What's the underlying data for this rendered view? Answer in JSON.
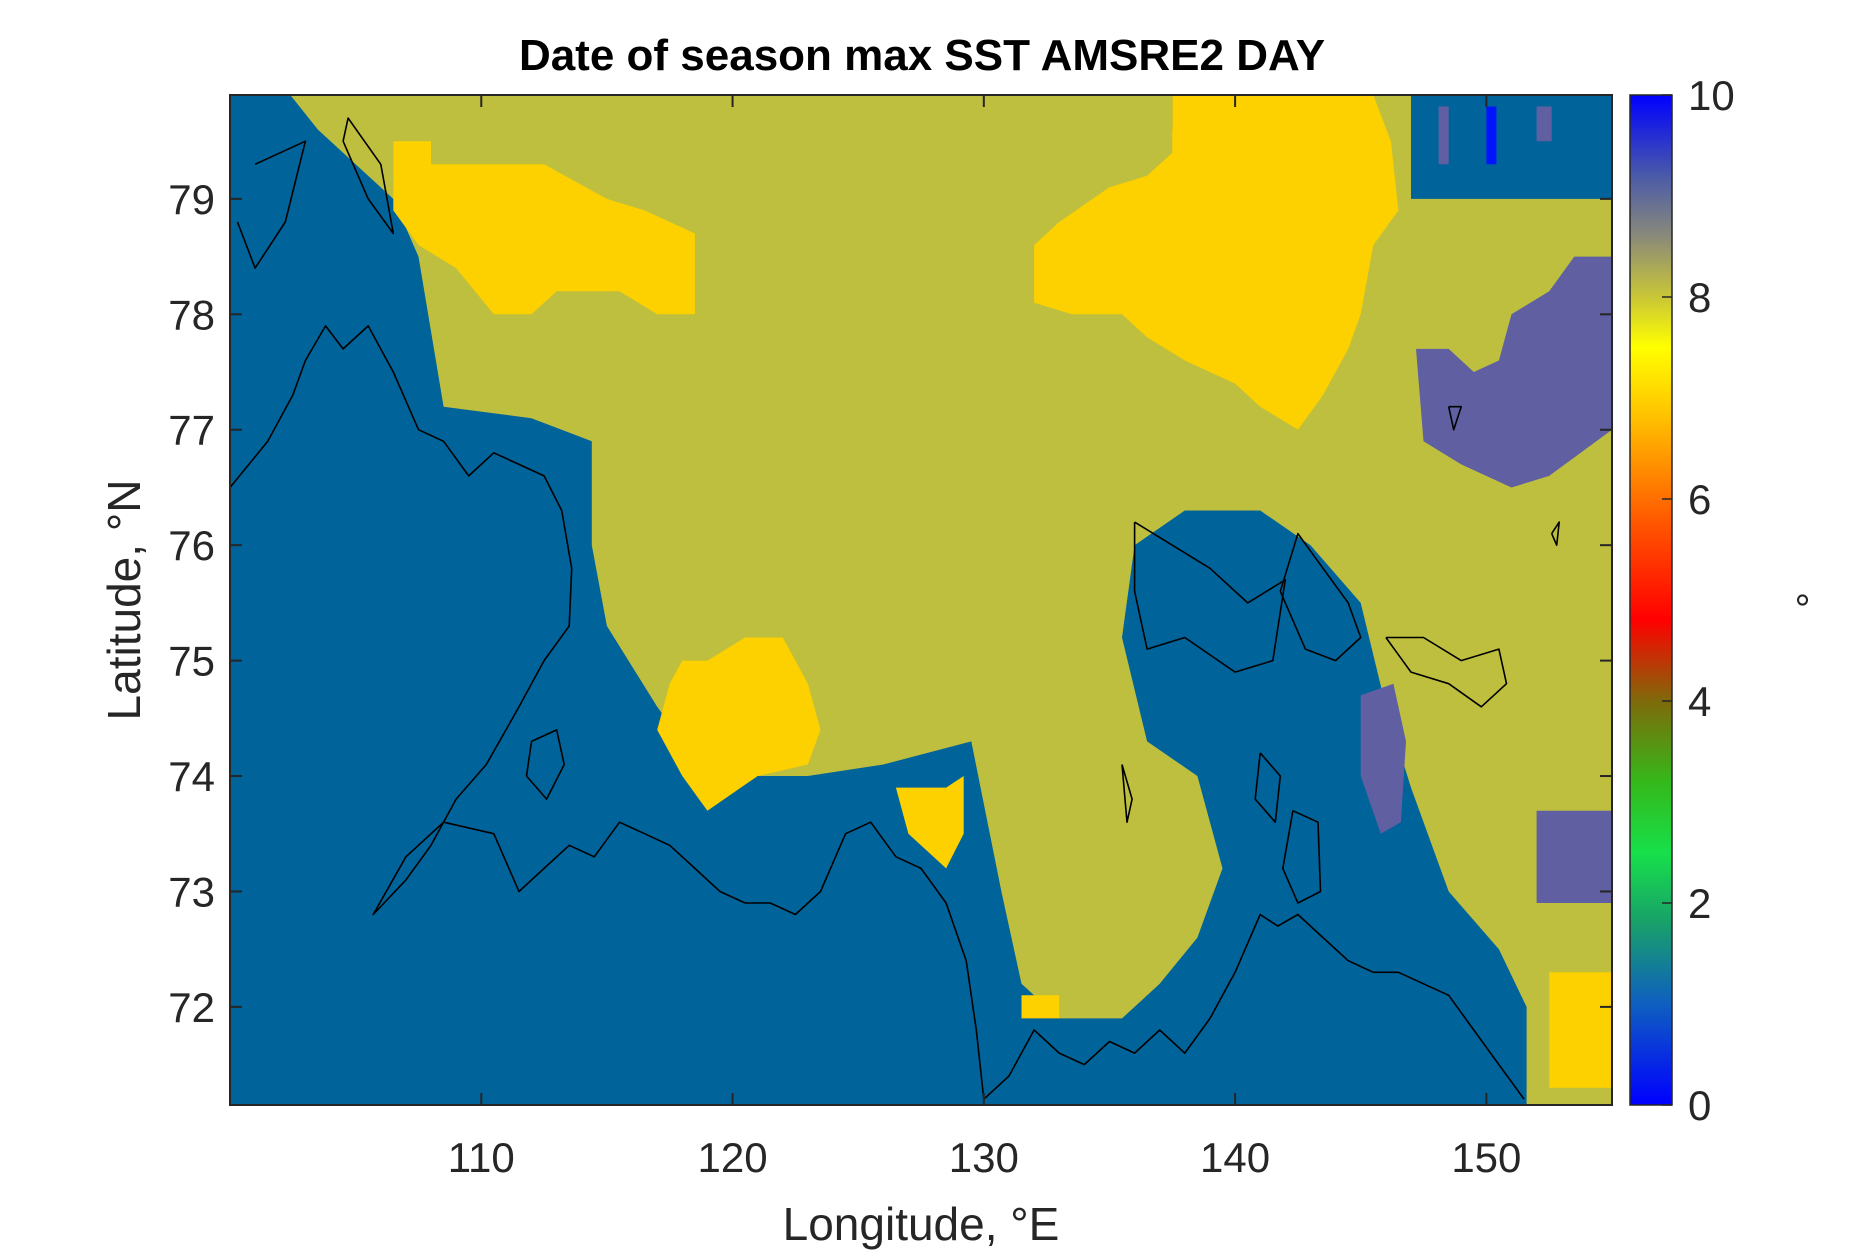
{
  "chart_data": {
    "type": "heatmap",
    "title": "Date of season max SST AMSRE2 DAY",
    "xlabel": "Longitude, °E",
    "ylabel": "Latitude, °N",
    "colorbar_label": "°",
    "xlim": [
      100,
      155
    ],
    "ylim": [
      71.15,
      79.9
    ],
    "clim": [
      0,
      10
    ],
    "x_ticks": [
      110,
      120,
      130,
      140,
      150
    ],
    "x_tick_labels": [
      "110",
      "120",
      "130",
      "140",
      "150"
    ],
    "y_ticks": [
      72,
      73,
      74,
      75,
      76,
      77,
      78,
      79
    ],
    "y_tick_labels": [
      "72",
      "73",
      "74",
      "75",
      "76",
      "77",
      "78",
      "79"
    ],
    "colorbar_ticks": [
      0,
      2,
      4,
      6,
      8,
      10
    ],
    "colorbar_tick_labels": [
      "0",
      "2",
      "4",
      "6",
      "8",
      "10"
    ],
    "colors": {
      "land": "#00639a",
      "value_8": "#bebf3f",
      "value_7": "#fdd000",
      "value_9": "#5f5fa2",
      "value_10": "#0014ff",
      "coastline": "#000000"
    },
    "field_regions": [
      {
        "value": 8,
        "polygon": [
          [
            102.4,
            79.9
          ],
          [
            137.5,
            79.9
          ],
          [
            137.5,
            79.6
          ],
          [
            143.2,
            79.6
          ],
          [
            143.2,
            79.9
          ],
          [
            147.0,
            79.9
          ],
          [
            147.0,
            79.0
          ],
          [
            155,
            79.0
          ],
          [
            155,
            71.15
          ],
          [
            151.6,
            71.15
          ],
          [
            151.6,
            72.0
          ],
          [
            150.5,
            72.5
          ],
          [
            148.5,
            73.0
          ],
          [
            147.0,
            73.9
          ],
          [
            146.0,
            74.6
          ],
          [
            145.0,
            75.5
          ],
          [
            143.0,
            76.0
          ],
          [
            141.0,
            76.3
          ],
          [
            138.0,
            76.3
          ],
          [
            136.0,
            76.0
          ],
          [
            135.5,
            75.2
          ],
          [
            136.5,
            74.3
          ],
          [
            138.5,
            74.0
          ],
          [
            139.5,
            73.2
          ],
          [
            138.5,
            72.6
          ],
          [
            137.0,
            72.2
          ],
          [
            135.5,
            71.9
          ],
          [
            133.0,
            71.9
          ],
          [
            131.5,
            72.2
          ],
          [
            130.7,
            73.0
          ],
          [
            129.5,
            74.3
          ],
          [
            126.0,
            74.1
          ],
          [
            123.0,
            74.0
          ],
          [
            119.0,
            74.0
          ],
          [
            117.0,
            74.6
          ],
          [
            115.0,
            75.3
          ],
          [
            114.4,
            76.0
          ],
          [
            114.4,
            76.9
          ],
          [
            112.0,
            77.1
          ],
          [
            108.5,
            77.2
          ],
          [
            107.5,
            78.5
          ],
          [
            106.5,
            79.0
          ],
          [
            105.0,
            79.3
          ],
          [
            103.5,
            79.6
          ]
        ]
      },
      {
        "value": 7,
        "polygon": [
          [
            106.5,
            79.5
          ],
          [
            108.0,
            79.5
          ],
          [
            108.0,
            79.3
          ],
          [
            112.5,
            79.3
          ],
          [
            115.0,
            79.0
          ],
          [
            116.5,
            78.9
          ],
          [
            118.5,
            78.7
          ],
          [
            118.5,
            78.0
          ],
          [
            117.0,
            78.0
          ],
          [
            115.5,
            78.2
          ],
          [
            113.0,
            78.2
          ],
          [
            112.0,
            78.0
          ],
          [
            110.5,
            78.0
          ],
          [
            109.0,
            78.4
          ],
          [
            107.5,
            78.6
          ],
          [
            106.5,
            78.9
          ]
        ]
      },
      {
        "value": 7,
        "polygon": [
          [
            137.5,
            79.9
          ],
          [
            143.2,
            79.9
          ],
          [
            145.5,
            79.9
          ],
          [
            146.2,
            79.5
          ],
          [
            146.5,
            78.9
          ],
          [
            145.5,
            78.6
          ],
          [
            145.0,
            78.0
          ],
          [
            144.5,
            77.7
          ],
          [
            143.5,
            77.3
          ],
          [
            142.5,
            77.0
          ],
          [
            141.0,
            77.2
          ],
          [
            140.0,
            77.4
          ],
          [
            138.0,
            77.6
          ],
          [
            136.5,
            77.8
          ],
          [
            135.5,
            78.0
          ],
          [
            133.5,
            78.0
          ],
          [
            132.0,
            78.1
          ],
          [
            132.0,
            78.6
          ],
          [
            133.0,
            78.8
          ],
          [
            135.0,
            79.1
          ],
          [
            136.5,
            79.2
          ],
          [
            137.5,
            79.4
          ]
        ]
      },
      {
        "value": 7,
        "polygon": [
          [
            117.0,
            74.4
          ],
          [
            117.5,
            74.8
          ],
          [
            118.0,
            75.0
          ],
          [
            119.0,
            75.0
          ],
          [
            120.5,
            75.2
          ],
          [
            122.0,
            75.2
          ],
          [
            123.0,
            74.8
          ],
          [
            123.5,
            74.4
          ],
          [
            123.0,
            74.1
          ],
          [
            121.0,
            74.0
          ],
          [
            119.0,
            73.7
          ],
          [
            118.0,
            74.0
          ]
        ]
      },
      {
        "value": 7,
        "polygon": [
          [
            126.5,
            73.9
          ],
          [
            128.5,
            73.9
          ],
          [
            129.2,
            74.0
          ],
          [
            129.2,
            73.5
          ],
          [
            128.5,
            73.2
          ],
          [
            127.0,
            73.5
          ]
        ]
      },
      {
        "value": 7,
        "polygon": [
          [
            131.5,
            72.1
          ],
          [
            133.0,
            72.1
          ],
          [
            133.0,
            71.9
          ],
          [
            131.5,
            71.9
          ]
        ]
      },
      {
        "value": 7,
        "polygon": [
          [
            152.5,
            72.3
          ],
          [
            155,
            72.3
          ],
          [
            155,
            71.3
          ],
          [
            152.5,
            71.3
          ]
        ]
      },
      {
        "value": 9,
        "polygon": [
          [
            147.2,
            77.7
          ],
          [
            148.5,
            77.7
          ],
          [
            149.5,
            77.5
          ],
          [
            150.5,
            77.6
          ],
          [
            151.0,
            78.0
          ],
          [
            152.5,
            78.2
          ],
          [
            153.5,
            78.5
          ],
          [
            155,
            78.5
          ],
          [
            155,
            77.0
          ],
          [
            152.5,
            76.6
          ],
          [
            151.0,
            76.5
          ],
          [
            149.0,
            76.7
          ],
          [
            147.5,
            76.9
          ]
        ]
      },
      {
        "value": 9,
        "polygon": [
          [
            145.0,
            74.0
          ],
          [
            145.0,
            74.7
          ],
          [
            146.3,
            74.8
          ],
          [
            146.8,
            74.3
          ],
          [
            146.6,
            73.6
          ],
          [
            145.8,
            73.5
          ]
        ]
      },
      {
        "value": 9,
        "polygon": [
          [
            152.0,
            73.7
          ],
          [
            155,
            73.7
          ],
          [
            155,
            72.9
          ],
          [
            152.0,
            72.9
          ]
        ]
      },
      {
        "value": 9,
        "polygon": [
          [
            148.1,
            79.3
          ],
          [
            148.5,
            79.3
          ],
          [
            148.5,
            79.8
          ],
          [
            148.1,
            79.8
          ]
        ]
      },
      {
        "value": 9,
        "polygon": [
          [
            152.0,
            79.5
          ],
          [
            152.6,
            79.5
          ],
          [
            152.6,
            79.8
          ],
          [
            152.0,
            79.8
          ]
        ]
      },
      {
        "value": 10,
        "polygon": [
          [
            150.0,
            79.3
          ],
          [
            150.4,
            79.3
          ],
          [
            150.4,
            79.8
          ],
          [
            150.0,
            79.8
          ]
        ]
      }
    ],
    "coastlines": [
      [
        [
          100.0,
          76.5
        ],
        [
          101.5,
          76.9
        ],
        [
          102.5,
          77.3
        ],
        [
          103.0,
          77.6
        ],
        [
          103.8,
          77.9
        ],
        [
          104.5,
          77.7
        ],
        [
          105.5,
          77.9
        ],
        [
          106.5,
          77.5
        ],
        [
          107.5,
          77.0
        ],
        [
          108.5,
          76.9
        ],
        [
          109.5,
          76.6
        ],
        [
          110.5,
          76.8
        ],
        [
          111.5,
          76.7
        ],
        [
          112.5,
          76.6
        ],
        [
          113.2,
          76.3
        ],
        [
          113.6,
          75.8
        ],
        [
          113.5,
          75.3
        ],
        [
          112.5,
          75.0
        ],
        [
          111.5,
          74.6
        ],
        [
          110.2,
          74.1
        ],
        [
          109.0,
          73.8
        ],
        [
          108.0,
          73.4
        ],
        [
          107.0,
          73.1
        ],
        [
          105.7,
          72.8
        ],
        [
          107.0,
          73.3
        ],
        [
          108.5,
          73.6
        ],
        [
          110.5,
          73.5
        ],
        [
          111.5,
          73.0
        ],
        [
          112.5,
          73.2
        ],
        [
          113.5,
          73.4
        ],
        [
          114.5,
          73.3
        ],
        [
          115.5,
          73.6
        ],
        [
          116.5,
          73.5
        ],
        [
          117.5,
          73.4
        ],
        [
          118.5,
          73.2
        ],
        [
          119.5,
          73.0
        ],
        [
          120.5,
          72.9
        ],
        [
          121.5,
          72.9
        ],
        [
          122.5,
          72.8
        ],
        [
          123.5,
          73.0
        ],
        [
          124.5,
          73.5
        ],
        [
          125.5,
          73.6
        ],
        [
          126.5,
          73.3
        ],
        [
          127.5,
          73.2
        ],
        [
          128.5,
          72.9
        ],
        [
          129.3,
          72.4
        ],
        [
          129.7,
          71.8
        ],
        [
          130.0,
          71.2
        ],
        [
          131.0,
          71.4
        ],
        [
          132.0,
          71.8
        ],
        [
          133.0,
          71.6
        ],
        [
          134.0,
          71.5
        ],
        [
          135.0,
          71.7
        ],
        [
          136.0,
          71.6
        ],
        [
          137.0,
          71.8
        ],
        [
          138.0,
          71.6
        ],
        [
          139.0,
          71.9
        ],
        [
          140.0,
          72.3
        ],
        [
          141.0,
          72.8
        ],
        [
          141.7,
          72.7
        ],
        [
          142.5,
          72.8
        ],
        [
          143.5,
          72.6
        ],
        [
          144.5,
          72.4
        ],
        [
          145.5,
          72.3
        ],
        [
          146.5,
          72.3
        ],
        [
          147.5,
          72.2
        ],
        [
          148.5,
          72.1
        ],
        [
          149.5,
          71.8
        ],
        [
          150.5,
          71.5
        ],
        [
          151.5,
          71.2
        ]
      ],
      [
        [
          104.5,
          79.5
        ],
        [
          105.5,
          79.0
        ],
        [
          106.5,
          78.7
        ],
        [
          106.0,
          79.3
        ],
        [
          104.7,
          79.7
        ],
        [
          104.5,
          79.5
        ]
      ],
      [
        [
          101.0,
          79.3
        ],
        [
          103.0,
          79.5
        ],
        [
          102.2,
          78.8
        ],
        [
          101.0,
          78.4
        ],
        [
          100.3,
          78.8
        ]
      ],
      [
        [
          112.0,
          74.3
        ],
        [
          113.0,
          74.4
        ],
        [
          113.3,
          74.1
        ],
        [
          112.6,
          73.8
        ],
        [
          111.8,
          74.0
        ],
        [
          112.0,
          74.3
        ]
      ],
      [
        [
          136.0,
          76.2
        ],
        [
          137.5,
          76.0
        ],
        [
          139.0,
          75.8
        ],
        [
          140.5,
          75.5
        ],
        [
          142.0,
          75.7
        ],
        [
          141.5,
          75.0
        ],
        [
          140.0,
          74.9
        ],
        [
          138.0,
          75.2
        ],
        [
          136.5,
          75.1
        ],
        [
          136.0,
          75.6
        ],
        [
          136.0,
          76.2
        ]
      ],
      [
        [
          141.8,
          75.6
        ],
        [
          142.5,
          76.1
        ],
        [
          143.5,
          75.8
        ],
        [
          144.5,
          75.5
        ],
        [
          145.0,
          75.2
        ],
        [
          144.0,
          75.0
        ],
        [
          142.8,
          75.1
        ],
        [
          141.8,
          75.6
        ]
      ],
      [
        [
          146.0,
          75.2
        ],
        [
          147.5,
          75.2
        ],
        [
          149.0,
          75.0
        ],
        [
          150.5,
          75.1
        ],
        [
          150.8,
          74.8
        ],
        [
          149.8,
          74.6
        ],
        [
          148.5,
          74.8
        ],
        [
          147.0,
          74.9
        ],
        [
          146.0,
          75.2
        ]
      ],
      [
        [
          141.0,
          74.2
        ],
        [
          141.8,
          74.0
        ],
        [
          141.6,
          73.6
        ],
        [
          140.8,
          73.8
        ],
        [
          141.0,
          74.2
        ]
      ],
      [
        [
          142.3,
          73.7
        ],
        [
          143.3,
          73.6
        ],
        [
          143.4,
          73.0
        ],
        [
          142.5,
          72.9
        ],
        [
          141.9,
          73.2
        ],
        [
          142.3,
          73.7
        ]
      ],
      [
        [
          135.5,
          74.1
        ],
        [
          135.9,
          73.8
        ],
        [
          135.7,
          73.6
        ],
        [
          135.5,
          74.1
        ]
      ],
      [
        [
          148.5,
          77.2
        ],
        [
          149.0,
          77.2
        ],
        [
          148.7,
          77.0
        ],
        [
          148.5,
          77.2
        ]
      ],
      [
        [
          152.6,
          76.1
        ],
        [
          152.9,
          76.2
        ],
        [
          152.8,
          76.0
        ],
        [
          152.6,
          76.1
        ]
      ]
    ]
  }
}
